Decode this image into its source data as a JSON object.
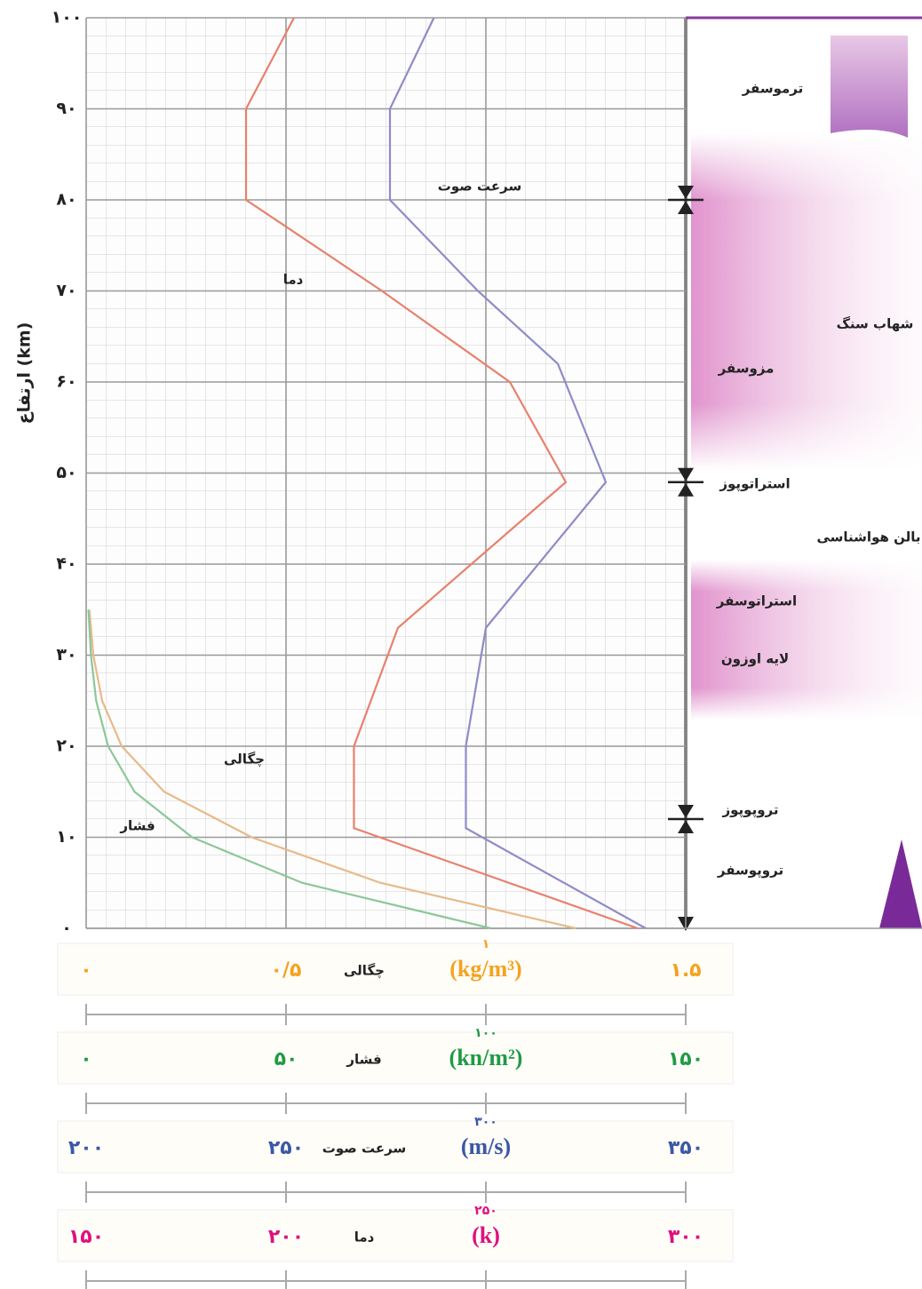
{
  "chart_data": {
    "type": "line",
    "ylabel": "ارتفاع (km)",
    "ylim": [
      0,
      100
    ],
    "yticks": [
      {
        "value": 0,
        "label": "۰"
      },
      {
        "value": 10,
        "label": "۱۰"
      },
      {
        "value": 20,
        "label": "۲۰"
      },
      {
        "value": 30,
        "label": "۳۰"
      },
      {
        "value": 40,
        "label": "۴۰"
      },
      {
        "value": 50,
        "label": "۵۰"
      },
      {
        "value": 60,
        "label": "۶۰"
      },
      {
        "value": 70,
        "label": "۷۰"
      },
      {
        "value": 80,
        "label": "۸۰"
      },
      {
        "value": 90,
        "label": "۹۰"
      },
      {
        "value": 100,
        "label": "۱۰۰"
      }
    ],
    "grid": true,
    "axes": [
      {
        "label": "چگالی",
        "unit": "(kg/m³)",
        "color": "#f5a21e",
        "xlim": [
          0,
          1.5
        ],
        "xticks": [
          {
            "value": 0,
            "label": "۰"
          },
          {
            "value": 0.5,
            "label": "۰/۵"
          },
          {
            "value": 1,
            "label": "۱"
          },
          {
            "value": 1.5,
            "label": "۱.۵"
          }
        ],
        "series": {
          "name": "چگالی",
          "color": "#e8b98a",
          "heights": [
            0,
            5,
            10,
            15,
            20,
            25,
            30,
            35
          ],
          "values": [
            1.225,
            0.736,
            0.414,
            0.195,
            0.089,
            0.04,
            0.018,
            0.008
          ]
        }
      },
      {
        "label": "فشار",
        "unit": "(kn/m²)",
        "color": "#1f9a45",
        "xlim": [
          0,
          150
        ],
        "xticks": [
          {
            "value": 0,
            "label": "۰"
          },
          {
            "value": 50,
            "label": "۵۰"
          },
          {
            "value": 100,
            "label": "۱۰۰"
          },
          {
            "value": 150,
            "label": "۱۵۰"
          }
        ],
        "series": {
          "name": "فشار",
          "color": "#8cc79a",
          "heights": [
            0,
            5,
            10,
            15,
            20,
            25,
            30,
            35
          ],
          "values": [
            101.3,
            54,
            26.5,
            12.1,
            5.5,
            2.5,
            1.2,
            0.57
          ]
        }
      },
      {
        "label": "سرعت صوت",
        "unit": "(m/s)",
        "color": "#3b57a6",
        "xlim": [
          200,
          350
        ],
        "xticks": [
          {
            "value": 200,
            "label": "۲۰۰"
          },
          {
            "value": 250,
            "label": "۲۵۰"
          },
          {
            "value": 300,
            "label": "۳۰۰"
          },
          {
            "value": 350,
            "label": "۳۵۰"
          }
        ],
        "series": {
          "name": "سرعت صوت",
          "color": "#8e8cc8",
          "heights": [
            0,
            11,
            20,
            33,
            49,
            62,
            70,
            80,
            90,
            100
          ],
          "values": [
            340,
            295,
            295,
            300,
            330,
            318,
            298,
            276,
            276,
            287
          ]
        }
      },
      {
        "label": "دما",
        "unit": "(k)",
        "color": "#e0107e",
        "xlim": [
          150,
          300
        ],
        "xticks": [
          {
            "value": 150,
            "label": "۱۵۰"
          },
          {
            "value": 200,
            "label": "۲۰۰"
          },
          {
            "value": 250,
            "label": "۲۵۰"
          },
          {
            "value": 300,
            "label": "۳۰۰"
          }
        ],
        "series": {
          "name": "دما",
          "color": "#e8806e",
          "heights": [
            0,
            11,
            20,
            33,
            49,
            60,
            70,
            80,
            90,
            100
          ],
          "values": [
            288,
            217,
            217,
            228,
            270,
            256,
            224,
            190,
            190,
            202
          ]
        }
      }
    ],
    "boundaries": [
      12,
      49,
      80
    ],
    "layers": [
      "ترموسفر",
      "شهاب سنگ",
      "مزوسفر",
      "استراتوپوز",
      "بالن هواشناسی",
      "استراتوسفر",
      "لایه اوزون",
      "تروپوپوز",
      "تروپوسفر"
    ]
  }
}
